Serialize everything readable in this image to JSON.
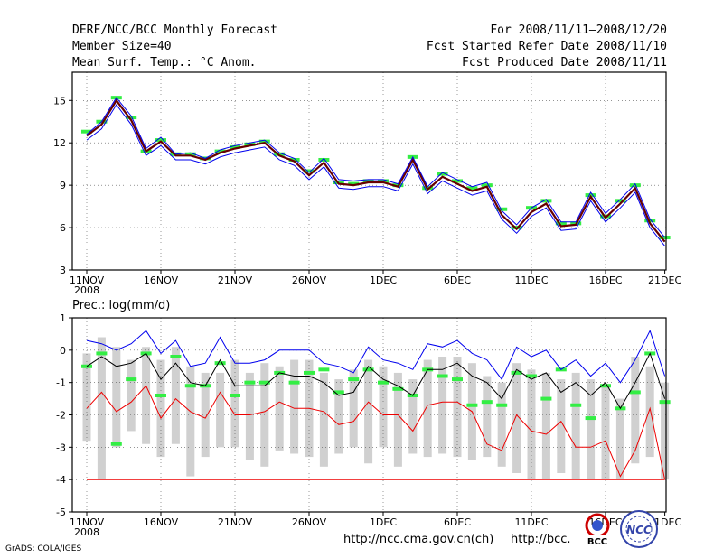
{
  "header": {
    "left": [
      "DERF/NCC/BCC Monthly Forecast",
      "Member Size=40",
      "Mean Surf. Temp.: °C Anom."
    ],
    "right": [
      "For 2008/11/11–2008/12/20",
      "Fcst Started Refer Date 2008/11/10",
      "Fcst Produced Date 2008/11/11"
    ]
  },
  "colors": {
    "green": "#33ee44",
    "gray": "#d0d0d0",
    "blue": "#0000ee",
    "red": "#ee0000",
    "black": "#000000",
    "darkred": "#660000"
  },
  "x_ticks": [
    {
      "day": 0,
      "label": "11NOV",
      "sub": "2008"
    },
    {
      "day": 5,
      "label": "16NOV",
      "sub": ""
    },
    {
      "day": 10,
      "label": "21NOV",
      "sub": ""
    },
    {
      "day": 15,
      "label": "26NOV",
      "sub": ""
    },
    {
      "day": 20,
      "label": "1DEC",
      "sub": ""
    },
    {
      "day": 25,
      "label": "6DEC",
      "sub": ""
    },
    {
      "day": 30,
      "label": "11DEC",
      "sub": ""
    },
    {
      "day": 35,
      "label": "16DEC",
      "sub": ""
    },
    {
      "day": 39,
      "label": "21DEC",
      "sub": ""
    }
  ],
  "chart_data": [
    {
      "type": "line",
      "title": "Mean Surf. Temp.: °C Anom.",
      "ylim": [
        3,
        17
      ],
      "yticks": [
        3,
        6,
        9,
        12,
        15
      ],
      "x": [
        0,
        1,
        2,
        3,
        4,
        5,
        6,
        7,
        8,
        9,
        10,
        11,
        12,
        13,
        14,
        15,
        16,
        17,
        18,
        19,
        20,
        21,
        22,
        23,
        24,
        25,
        26,
        27,
        28,
        29,
        30,
        31,
        32,
        33,
        34,
        35,
        36,
        37,
        38,
        39
      ],
      "series": [
        {
          "name": "ensemble mean",
          "color": "#ee0000",
          "values": [
            12.5,
            13.3,
            15.0,
            13.6,
            11.4,
            12.1,
            11.1,
            11.1,
            10.8,
            11.3,
            11.6,
            11.8,
            12.0,
            11.1,
            10.7,
            9.7,
            10.6,
            9.1,
            9.0,
            9.2,
            9.2,
            8.9,
            10.8,
            8.7,
            9.6,
            9.1,
            8.6,
            8.9,
            6.9,
            5.9,
            7.1,
            7.7,
            6.1,
            6.2,
            8.2,
            6.7,
            7.7,
            8.8,
            6.3,
            5.0
          ]
        },
        {
          "name": "upper member",
          "color": "#0000ee",
          "values": [
            12.6,
            13.5,
            15.2,
            13.9,
            11.6,
            12.4,
            11.2,
            11.3,
            10.9,
            11.5,
            11.8,
            12.0,
            12.2,
            11.3,
            10.9,
            9.9,
            10.9,
            9.4,
            9.3,
            9.4,
            9.4,
            9.1,
            11.0,
            8.9,
            9.9,
            9.4,
            8.9,
            9.2,
            7.2,
            6.2,
            7.4,
            8.0,
            6.4,
            6.4,
            8.5,
            7.0,
            8.0,
            9.1,
            6.6,
            5.3
          ]
        },
        {
          "name": "lower member",
          "color": "#0000ee",
          "values": [
            12.2,
            13.0,
            14.7,
            13.3,
            11.1,
            11.8,
            10.8,
            10.8,
            10.5,
            11.0,
            11.3,
            11.5,
            11.7,
            10.8,
            10.4,
            9.4,
            10.3,
            8.8,
            8.7,
            8.9,
            8.9,
            8.6,
            10.5,
            8.4,
            9.3,
            8.8,
            8.3,
            8.6,
            6.6,
            5.6,
            6.8,
            7.4,
            5.8,
            5.9,
            7.9,
            6.4,
            7.4,
            8.5,
            6.0,
            4.7
          ]
        }
      ],
      "markers": {
        "name": "green bars",
        "color": "#33ee44",
        "values": [
          12.8,
          13.5,
          15.2,
          13.8,
          11.4,
          12.2,
          11.2,
          11.2,
          10.9,
          11.4,
          11.7,
          11.9,
          12.1,
          11.2,
          10.8,
          10.0,
          10.8,
          9.2,
          9.1,
          9.3,
          9.3,
          9.0,
          11.0,
          8.8,
          9.8,
          9.3,
          8.8,
          9.0,
          7.3,
          6.0,
          7.4,
          7.9,
          6.3,
          6.3,
          8.3,
          6.8,
          7.9,
          9.0,
          6.5,
          5.3
        ]
      }
    },
    {
      "type": "bar",
      "title": "Prec.: log(mm/d)",
      "ylim": [
        -5,
        1
      ],
      "yticks": [
        -5,
        -4,
        -3,
        -2,
        -1,
        0,
        1
      ],
      "x": [
        0,
        1,
        2,
        3,
        4,
        5,
        6,
        7,
        8,
        9,
        10,
        11,
        12,
        13,
        14,
        15,
        16,
        17,
        18,
        19,
        20,
        21,
        22,
        23,
        24,
        25,
        26,
        27,
        28,
        29,
        30,
        31,
        32,
        33,
        34,
        35,
        36,
        37,
        38,
        39
      ],
      "bar_top": [
        -0.1,
        0.4,
        0.1,
        -0.3,
        0.1,
        -0.3,
        0.1,
        -0.5,
        -0.7,
        -0.7,
        -0.3,
        -0.7,
        -0.4,
        -0.5,
        -0.3,
        -0.3,
        -0.7,
        -0.9,
        -0.6,
        -0.3,
        -0.5,
        -0.7,
        -0.9,
        -0.3,
        -0.2,
        -0.2,
        -0.4,
        -0.8,
        -1.0,
        -0.4,
        -0.6,
        -0.7,
        -0.9,
        -0.7,
        -0.9,
        -1.1,
        -1.5,
        -0.2,
        -0.5,
        -1.0
      ],
      "bar_bottom": [
        -2.8,
        -4.0,
        -3.0,
        -2.5,
        -2.9,
        -3.3,
        -2.9,
        -3.9,
        -3.3,
        -3.0,
        -3.0,
        -3.4,
        -3.6,
        -3.1,
        -3.2,
        -3.3,
        -3.6,
        -3.2,
        -3.0,
        -3.5,
        -3.0,
        -3.6,
        -3.2,
        -3.3,
        -3.2,
        -3.3,
        -3.4,
        -3.3,
        -3.6,
        -3.8,
        -4.0,
        -4.0,
        -3.8,
        -4.0,
        -4.0,
        -4.0,
        -4.0,
        -3.5,
        -3.3,
        -4.0
      ],
      "series": [
        {
          "name": "ensemble mean",
          "color": "#000000",
          "values": [
            -0.5,
            -0.2,
            -0.5,
            -0.4,
            -0.1,
            -0.9,
            -0.4,
            -1.0,
            -1.1,
            -0.3,
            -1.1,
            -1.1,
            -1.1,
            -0.7,
            -0.8,
            -0.8,
            -1.0,
            -1.4,
            -1.3,
            -0.5,
            -0.9,
            -1.1,
            -1.4,
            -0.6,
            -0.6,
            -0.4,
            -0.8,
            -1.0,
            -1.5,
            -0.6,
            -0.9,
            -0.7,
            -1.3,
            -1.0,
            -1.4,
            -1.0,
            -1.8,
            -1.0,
            -0.1,
            -1.5
          ]
        },
        {
          "name": "upper bound",
          "color": "#0000ee",
          "values": [
            0.3,
            0.2,
            0.0,
            0.2,
            0.6,
            -0.1,
            0.3,
            -0.5,
            -0.4,
            0.4,
            -0.4,
            -0.4,
            -0.3,
            0.0,
            0.0,
            0.0,
            -0.4,
            -0.5,
            -0.7,
            0.1,
            -0.3,
            -0.4,
            -0.6,
            0.2,
            0.1,
            0.3,
            -0.1,
            -0.3,
            -0.9,
            0.1,
            -0.2,
            0.0,
            -0.6,
            -0.3,
            -0.8,
            -0.4,
            -1.0,
            -0.3,
            0.6,
            -0.8
          ]
        },
        {
          "name": "lower bound",
          "color": "#ee0000",
          "values": [
            -1.8,
            -1.3,
            -1.9,
            -1.6,
            -1.1,
            -2.1,
            -1.5,
            -1.9,
            -2.1,
            -1.3,
            -2.0,
            -2.0,
            -1.9,
            -1.6,
            -1.8,
            -1.8,
            -1.9,
            -2.3,
            -2.2,
            -1.6,
            -2.0,
            -2.0,
            -2.5,
            -1.7,
            -1.6,
            -1.6,
            -1.9,
            -2.9,
            -3.1,
            -2.0,
            -2.5,
            -2.6,
            -2.2,
            -3.0,
            -3.0,
            -2.8,
            -3.9,
            -3.1,
            -1.8,
            -4.0
          ]
        },
        {
          "name": "minimum",
          "color": "#ee0000",
          "values": [
            -4.0,
            -4.0,
            -4.0,
            -4.0,
            -4.0,
            -4.0,
            -4.0,
            -4.0,
            -4.0,
            -4.0,
            -4.0,
            -4.0,
            -4.0,
            -4.0,
            -4.0,
            -4.0,
            -4.0,
            -4.0,
            -4.0,
            -4.0,
            -4.0,
            -4.0,
            -4.0,
            -4.0,
            -4.0,
            -4.0,
            -4.0,
            -4.0,
            -4.0,
            -4.0,
            -4.0,
            -4.0,
            -4.0,
            -4.0,
            -4.0,
            -4.0,
            -4.0,
            -4.0,
            -4.0,
            -4.0
          ]
        }
      ],
      "markers": {
        "name": "green bars",
        "color": "#33ee44",
        "values": [
          -0.5,
          -0.1,
          -2.9,
          -0.9,
          -0.1,
          -1.4,
          -0.2,
          -1.1,
          -1.1,
          -0.4,
          -1.4,
          -1.0,
          -1.0,
          -0.7,
          -1.0,
          -0.7,
          -0.6,
          -1.3,
          -0.9,
          -0.6,
          -1.0,
          -1.2,
          -1.4,
          -0.6,
          -0.8,
          -0.9,
          -1.7,
          -1.6,
          -1.7,
          -0.7,
          -0.8,
          -1.5,
          -0.6,
          -1.7,
          -2.1,
          -1.1,
          -1.8,
          -1.3,
          -0.1,
          -1.6
        ]
      }
    }
  ],
  "footer": {
    "credit": "GrADS: COLA/IGES",
    "url1": "http://ncc.cma.gov.cn(ch)",
    "url2": "http://bcc.",
    "url3": "",
    "logo1": "BCC",
    "logo2": "NCC"
  }
}
